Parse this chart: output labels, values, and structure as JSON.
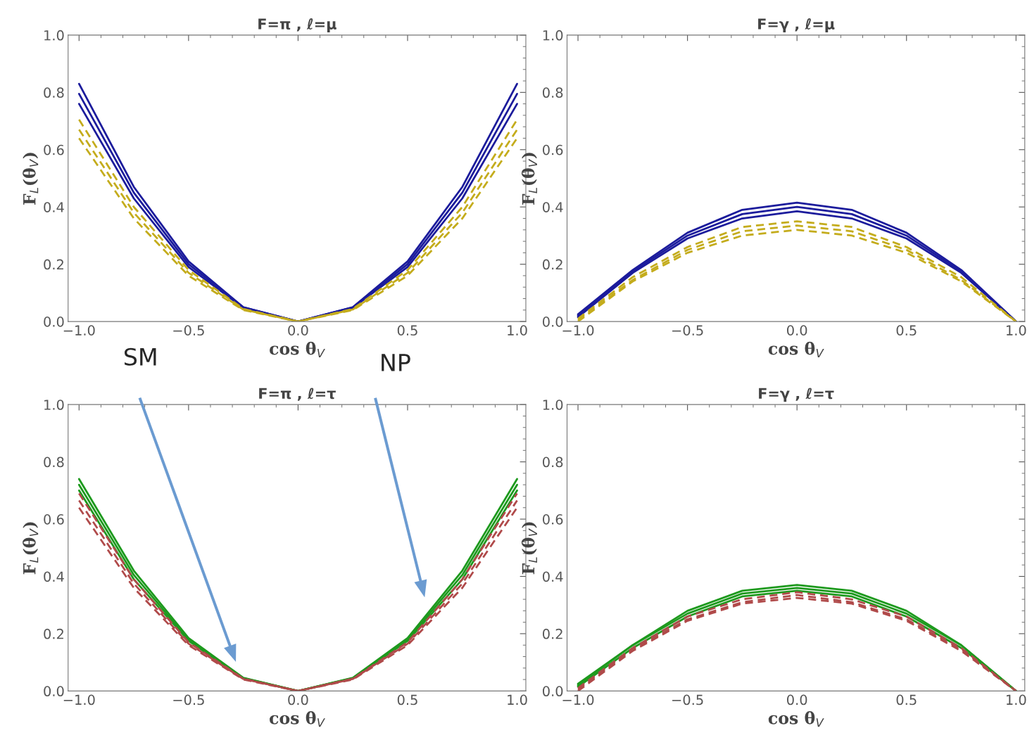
{
  "chart_data": [
    {
      "type": "line",
      "title": "F=π , ℓ=μ",
      "xlabel": "cos θ$_{V}$",
      "ylabel": "F$_{L}$(θ$_{V}$)",
      "xlim": [
        -1.05,
        1.04
      ],
      "ylim": [
        0,
        1
      ],
      "xticks": [
        {
          "value": -1,
          "label": "−1.0"
        },
        {
          "value": -0.5,
          "label": "−0.5"
        },
        {
          "value": 0,
          "label": "0.0"
        },
        {
          "value": 0.5,
          "label": "0.5"
        },
        {
          "value": 1,
          "label": "1.0"
        }
      ],
      "yticks": [
        {
          "value": 0,
          "label": "0.0"
        },
        {
          "value": 0.2,
          "label": "0.2"
        },
        {
          "value": 0.4,
          "label": "0.4"
        },
        {
          "value": 0.6,
          "label": "0.6"
        },
        {
          "value": 0.8,
          "label": "0.8"
        },
        {
          "value": 1,
          "label": "1.0"
        }
      ],
      "x": [
        -1,
        -0.75,
        -0.5,
        -0.25,
        0,
        0.25,
        0.5,
        0.75,
        1
      ],
      "grid": false,
      "legend": false,
      "series": [
        {
          "color": "#1c1c9c",
          "line_style": "solid",
          "values": [
            0.83,
            0.47,
            0.21,
            0.05,
            0,
            0.05,
            0.21,
            0.47,
            0.83
          ]
        },
        {
          "color": "#1c1c9c",
          "line_style": "solid",
          "values": [
            0.795,
            0.45,
            0.2,
            0.05,
            0,
            0.05,
            0.2,
            0.45,
            0.795
          ]
        },
        {
          "color": "#1c1c9c",
          "line_style": "solid",
          "values": [
            0.76,
            0.43,
            0.19,
            0.048,
            0,
            0.048,
            0.19,
            0.43,
            0.76
          ]
        },
        {
          "color": "#c4ac1c",
          "line_style": "dashed",
          "values": [
            0.705,
            0.4,
            0.18,
            0.044,
            0,
            0.044,
            0.18,
            0.4,
            0.705
          ]
        },
        {
          "color": "#c4ac1c",
          "line_style": "dashed",
          "values": [
            0.67,
            0.38,
            0.17,
            0.042,
            0,
            0.042,
            0.17,
            0.38,
            0.67
          ]
        },
        {
          "color": "#c4ac1c",
          "line_style": "dashed",
          "values": [
            0.64,
            0.36,
            0.16,
            0.04,
            0,
            0.04,
            0.16,
            0.36,
            0.64
          ]
        }
      ]
    },
    {
      "type": "line",
      "title": "F=γ , ℓ=μ",
      "xlabel": "cos θ$_{V}$",
      "ylabel": "F$_{L}$(θ$_{V}$)",
      "xlim": [
        -1.05,
        1.04
      ],
      "ylim": [
        0,
        1
      ],
      "xticks": [
        {
          "value": -1,
          "label": "−1.0"
        },
        {
          "value": -0.5,
          "label": "−0.5"
        },
        {
          "value": 0,
          "label": "0.0"
        },
        {
          "value": 0.5,
          "label": "0.5"
        },
        {
          "value": 1,
          "label": "1.0"
        }
      ],
      "yticks": [
        {
          "value": 0,
          "label": "0.0"
        },
        {
          "value": 0.2,
          "label": "0.2"
        },
        {
          "value": 0.4,
          "label": "0.4"
        },
        {
          "value": 0.6,
          "label": "0.6"
        },
        {
          "value": 0.8,
          "label": "0.8"
        },
        {
          "value": 1,
          "label": "1.0"
        }
      ],
      "x": [
        -1,
        -0.75,
        -0.5,
        -0.25,
        0,
        0.25,
        0.5,
        0.75,
        1
      ],
      "grid": false,
      "legend": false,
      "series": [
        {
          "color": "#1c1c9c",
          "line_style": "solid",
          "values": [
            0.025,
            0.18,
            0.31,
            0.39,
            0.415,
            0.39,
            0.31,
            0.18,
            0
          ]
        },
        {
          "color": "#1c1c9c",
          "line_style": "solid",
          "values": [
            0.02,
            0.175,
            0.3,
            0.375,
            0.4,
            0.375,
            0.3,
            0.175,
            0
          ]
        },
        {
          "color": "#1c1c9c",
          "line_style": "solid",
          "values": [
            0.015,
            0.17,
            0.29,
            0.36,
            0.385,
            0.36,
            0.29,
            0.17,
            0
          ]
        },
        {
          "color": "#c4ac1c",
          "line_style": "dashed",
          "values": [
            0.01,
            0.155,
            0.26,
            0.33,
            0.35,
            0.33,
            0.26,
            0.155,
            0
          ]
        },
        {
          "color": "#c4ac1c",
          "line_style": "dashed",
          "values": [
            0.005,
            0.145,
            0.25,
            0.315,
            0.335,
            0.315,
            0.25,
            0.145,
            0
          ]
        },
        {
          "color": "#c4ac1c",
          "line_style": "dashed",
          "values": [
            0,
            0.14,
            0.24,
            0.3,
            0.32,
            0.3,
            0.24,
            0.14,
            0
          ]
        }
      ]
    },
    {
      "type": "line",
      "title": "F=π , ℓ=τ",
      "xlabel": "cos θ$_{V}$",
      "ylabel": "F$_{L}$(θ$_{V}$)",
      "xlim": [
        -1.05,
        1.04
      ],
      "ylim": [
        0,
        1
      ],
      "xticks": [
        {
          "value": -1,
          "label": "−1.0"
        },
        {
          "value": -0.5,
          "label": "−0.5"
        },
        {
          "value": 0,
          "label": "0.0"
        },
        {
          "value": 0.5,
          "label": "0.5"
        },
        {
          "value": 1,
          "label": "1.0"
        }
      ],
      "yticks": [
        {
          "value": 0,
          "label": "0.0"
        },
        {
          "value": 0.2,
          "label": "0.2"
        },
        {
          "value": 0.4,
          "label": "0.4"
        },
        {
          "value": 0.6,
          "label": "0.6"
        },
        {
          "value": 0.8,
          "label": "0.8"
        },
        {
          "value": 1,
          "label": "1.0"
        }
      ],
      "x": [
        -1,
        -0.75,
        -0.5,
        -0.25,
        0,
        0.25,
        0.5,
        0.75,
        1
      ],
      "grid": false,
      "legend": false,
      "annotations": [
        "SM",
        "NP"
      ],
      "series": [
        {
          "color": "#1e9a1e",
          "line_style": "solid",
          "values": [
            0.74,
            0.42,
            0.185,
            0.046,
            0,
            0.046,
            0.185,
            0.42,
            0.74
          ]
        },
        {
          "color": "#1e9a1e",
          "line_style": "solid",
          "values": [
            0.72,
            0.405,
            0.18,
            0.045,
            0,
            0.045,
            0.18,
            0.405,
            0.72
          ]
        },
        {
          "color": "#1e9a1e",
          "line_style": "solid",
          "values": [
            0.7,
            0.39,
            0.175,
            0.044,
            0,
            0.044,
            0.175,
            0.39,
            0.7
          ]
        },
        {
          "color": "#b04a4a",
          "line_style": "dashed",
          "values": [
            0.69,
            0.39,
            0.17,
            0.043,
            0,
            0.043,
            0.17,
            0.39,
            0.69
          ]
        },
        {
          "color": "#b04a4a",
          "line_style": "dashed",
          "values": [
            0.665,
            0.375,
            0.165,
            0.042,
            0,
            0.042,
            0.165,
            0.375,
            0.665
          ]
        },
        {
          "color": "#b04a4a",
          "line_style": "dashed",
          "values": [
            0.64,
            0.36,
            0.16,
            0.04,
            0,
            0.04,
            0.16,
            0.36,
            0.64
          ]
        }
      ]
    },
    {
      "type": "line",
      "title": "F=γ , ℓ=τ",
      "xlabel": "cos θ$_{V}$",
      "ylabel": "F$_{L}$(θ$_{V}$)",
      "xlim": [
        -1.05,
        1.04
      ],
      "ylim": [
        0,
        1
      ],
      "xticks": [
        {
          "value": -1,
          "label": "−1.0"
        },
        {
          "value": -0.5,
          "label": "−0.5"
        },
        {
          "value": 0,
          "label": "0.0"
        },
        {
          "value": 0.5,
          "label": "0.5"
        },
        {
          "value": 1,
          "label": "1.0"
        }
      ],
      "yticks": [
        {
          "value": 0,
          "label": "0.0"
        },
        {
          "value": 0.2,
          "label": "0.2"
        },
        {
          "value": 0.4,
          "label": "0.4"
        },
        {
          "value": 0.6,
          "label": "0.6"
        },
        {
          "value": 0.8,
          "label": "0.8"
        },
        {
          "value": 1,
          "label": "1.0"
        }
      ],
      "x": [
        -1,
        -0.75,
        -0.5,
        -0.25,
        0,
        0.25,
        0.5,
        0.75,
        1
      ],
      "grid": false,
      "legend": false,
      "series": [
        {
          "color": "#1e9a1e",
          "line_style": "solid",
          "values": [
            0.025,
            0.16,
            0.28,
            0.35,
            0.37,
            0.35,
            0.28,
            0.16,
            0
          ]
        },
        {
          "color": "#1e9a1e",
          "line_style": "solid",
          "values": [
            0.02,
            0.16,
            0.27,
            0.34,
            0.36,
            0.34,
            0.27,
            0.16,
            0
          ]
        },
        {
          "color": "#1e9a1e",
          "line_style": "solid",
          "values": [
            0.015,
            0.15,
            0.26,
            0.33,
            0.35,
            0.33,
            0.26,
            0.15,
            0
          ]
        },
        {
          "color": "#b04a4a",
          "line_style": "dashed",
          "values": [
            0.01,
            0.15,
            0.26,
            0.32,
            0.345,
            0.32,
            0.26,
            0.15,
            0
          ]
        },
        {
          "color": "#b04a4a",
          "line_style": "dashed",
          "values": [
            0.005,
            0.145,
            0.25,
            0.31,
            0.335,
            0.31,
            0.25,
            0.145,
            0
          ]
        },
        {
          "color": "#b04a4a",
          "line_style": "dashed",
          "values": [
            0,
            0.14,
            0.245,
            0.305,
            0.325,
            0.305,
            0.245,
            0.14,
            0
          ]
        }
      ]
    }
  ]
}
